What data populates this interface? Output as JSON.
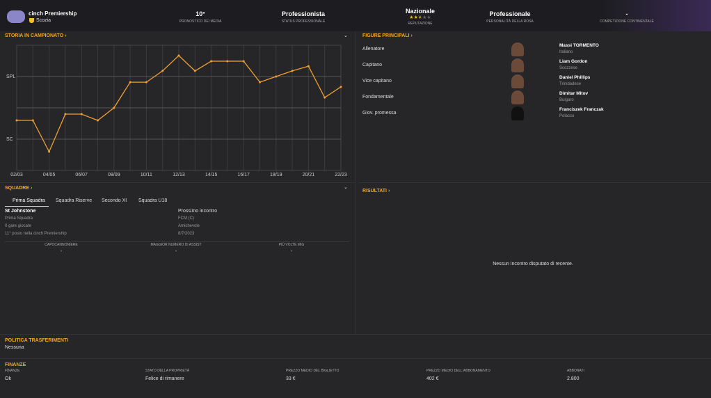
{
  "header": {
    "competition": "cinch Premiership",
    "nation": "Scozia",
    "reputation_stars": 2.5,
    "stats": [
      {
        "value": "10°",
        "label": "PRONOSTICO DEI MEDIA"
      },
      {
        "value": "Professionista",
        "label": "STATUS PROFESSIONALE"
      },
      {
        "value": "Nazionale",
        "label": "REPUTAZIONE"
      },
      {
        "value": "Professionale",
        "label": "PERSONALITÀ DELLA ROSA"
      },
      {
        "value": "-",
        "label": "COMPETIZIONE CONTINENTALE"
      }
    ]
  },
  "chart_data": {
    "type": "line",
    "title": "STORIA IN CAMPIONATO",
    "x": [
      "02/03",
      null,
      "04/05",
      null,
      "06/07",
      null,
      "08/09",
      null,
      "10/11",
      null,
      "12/13",
      null,
      "14/15",
      null,
      "16/17",
      null,
      "18/19",
      null,
      "20/21",
      null,
      "22/23"
    ],
    "series": [
      {
        "color": "#f0a030",
        "values": [
          2.4,
          2.4,
          3.4,
          2.2,
          2.2,
          2.4,
          2.0,
          1.18,
          1.18,
          0.82,
          0.33,
          0.82,
          0.51,
          0.51,
          0.51,
          1.18,
          1.0,
          0.82,
          0.67,
          1.67,
          1.33
        ]
      }
    ],
    "ylim": [
      4,
      0
    ],
    "yticks": [
      {
        "value": 1,
        "label": "SPL"
      },
      {
        "value": 2,
        "label": null
      },
      {
        "value": 3,
        "label": "SC"
      }
    ],
    "grid": true
  },
  "key_people": {
    "title": "FIGURE PRINCIPALI",
    "rows": [
      {
        "role": "Allenatore",
        "name": "Massi TORMENTO",
        "nationality": "Italiano"
      },
      {
        "role": "Capitano",
        "name": "Liam Gordon",
        "nationality": "Scozzese"
      },
      {
        "role": "Vice capitano",
        "name": "Daniel Phillips",
        "nationality": "Trinidadese"
      },
      {
        "role": "Fondamentale",
        "name": "Dimitar Mitov",
        "nationality": "Bulgaro"
      },
      {
        "role": "Giov. promessa",
        "name": "Franciszek Franczak",
        "nationality": "Polacco"
      }
    ]
  },
  "squads": {
    "title": "SQUADRE",
    "tabs": [
      "Prima Squadra",
      "Squadra Riserve",
      "Secondo XI",
      "Squadra U18"
    ],
    "team": "St Johnstone",
    "lines": [
      "Prima Squadra",
      "0 gare giocate",
      "11° posto nella cinch Premiership"
    ],
    "next_match": {
      "title": "Prossimo incontro",
      "lines": [
        "FCM (C)",
        "Amichevole",
        "8/7/2023"
      ]
    },
    "stats": [
      {
        "label": "CAPOCANNONIERE",
        "value": "-"
      },
      {
        "label": "MAGGIOR NUMERO DI ASSIST",
        "value": "-"
      },
      {
        "label": "PIÙ VOLTE MIG",
        "value": "-"
      }
    ]
  },
  "results": {
    "title": "RISULTATI",
    "empty": "Nessun incontro disputato di recente."
  },
  "transfer": {
    "title": "POLITICA TRASFERIMENTI",
    "value": "Nessuna"
  },
  "finance": {
    "title": "FINANZE",
    "items": [
      {
        "label": "FINANZE",
        "value": "Ok"
      },
      {
        "label": "STATO DELLA PROPRIETÀ",
        "value": "Felice di rimanere"
      },
      {
        "label": "PREZZO MEDIO DEL BIGLIETTO",
        "value": "33 €"
      },
      {
        "label": "PREZZO MEDIO DELL'ABBONAMENTO",
        "value": "402 €"
      },
      {
        "label": "ABBONATI",
        "value": "2.800"
      }
    ]
  }
}
